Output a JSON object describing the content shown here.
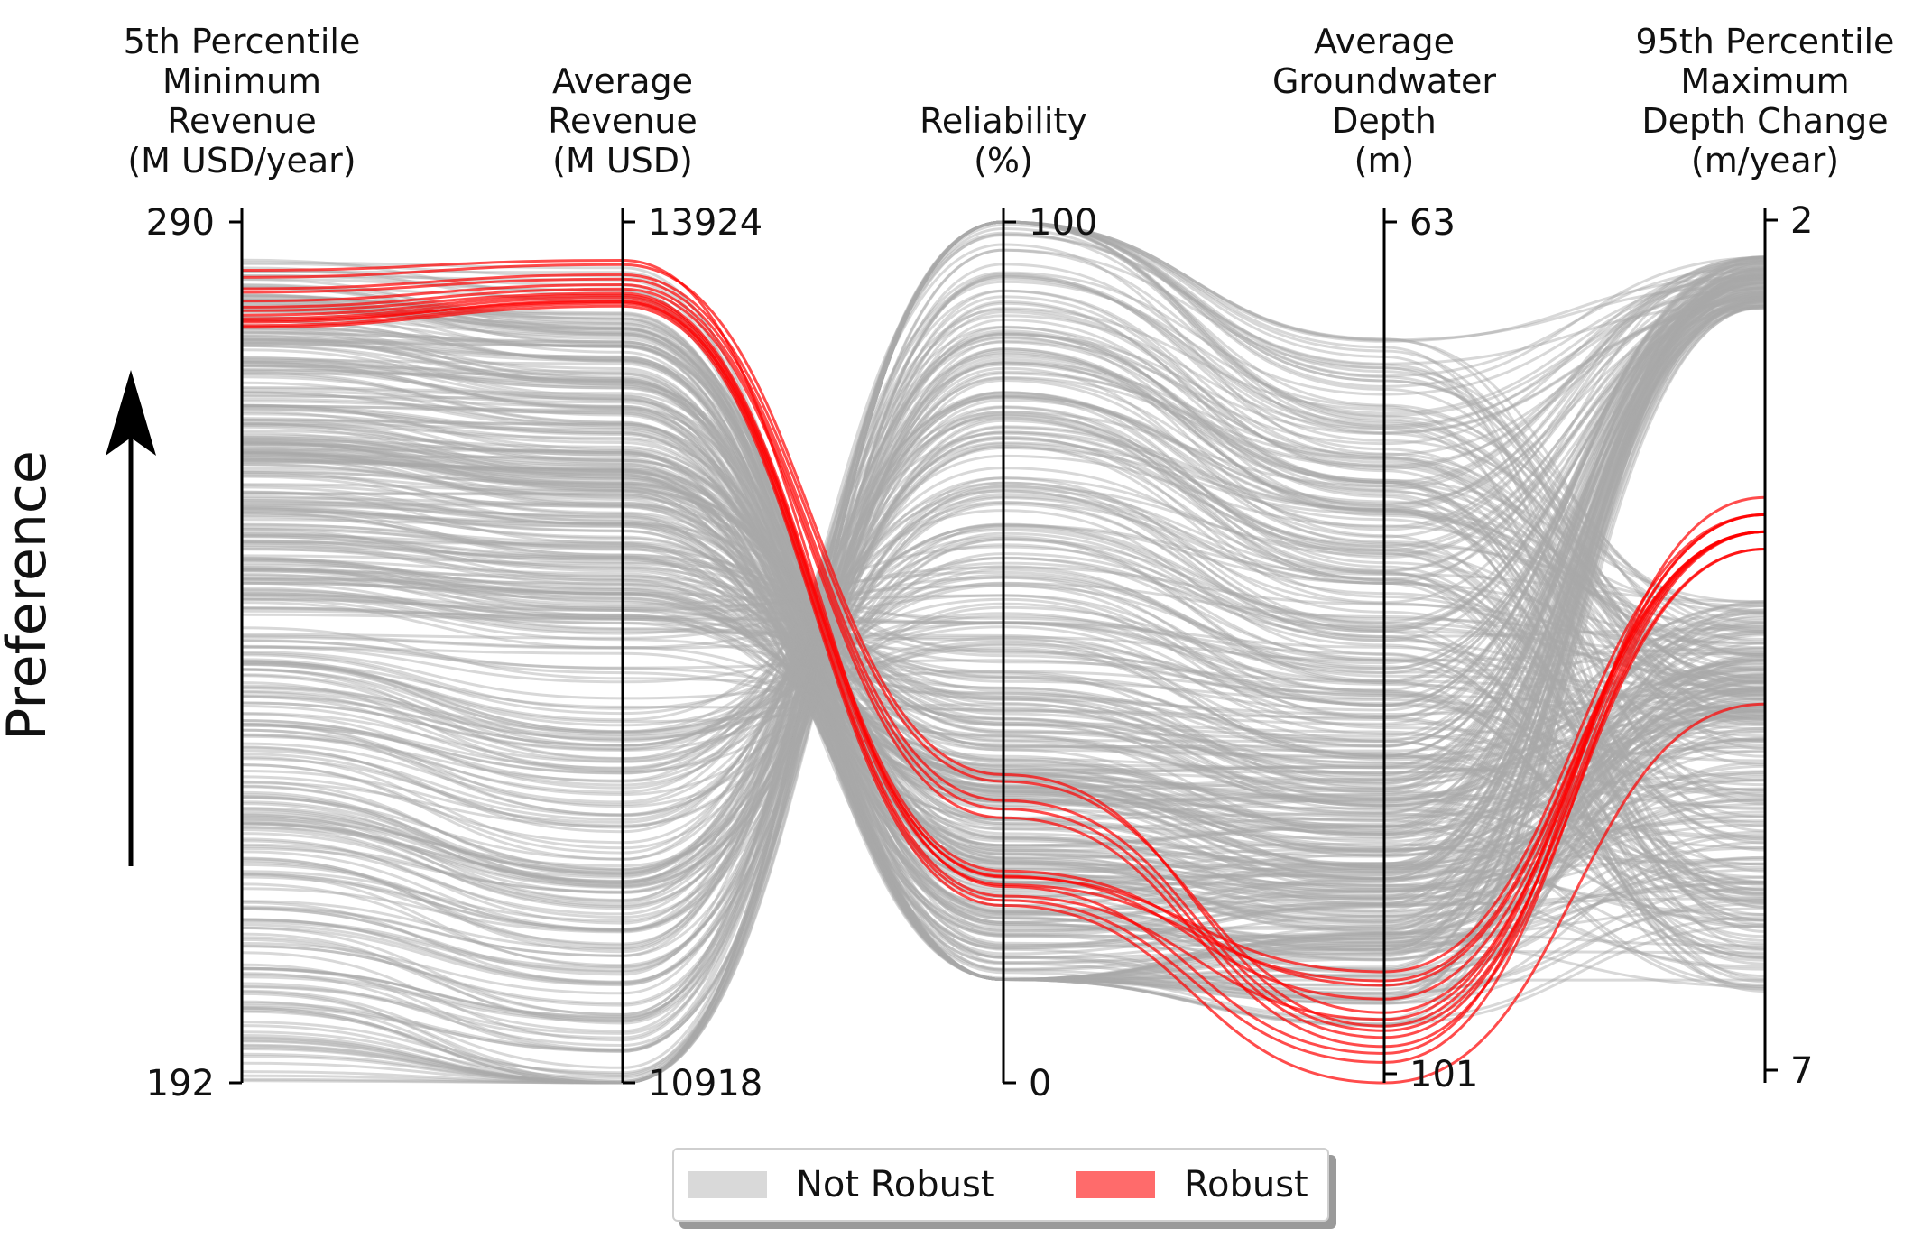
{
  "chart_data": {
    "type": "parallel-coordinates",
    "y_axis_label": "Preference",
    "axes": [
      {
        "title_lines": [
          "5th Percentile",
          "Minimum",
          "Revenue",
          "(M USD/year)"
        ],
        "top": "290",
        "bottom": "192",
        "top_value": 290,
        "bottom_value": 192
      },
      {
        "title_lines": [
          "Average",
          "Revenue",
          "(M USD)"
        ],
        "top": "13924",
        "bottom": "10918",
        "top_value": 13924,
        "bottom_value": 10918
      },
      {
        "title_lines": [
          "Reliability",
          "(%)"
        ],
        "top": "100",
        "bottom": "0",
        "top_value": 100,
        "bottom_value": 0
      },
      {
        "title_lines": [
          "Average",
          "Groundwater",
          "Depth",
          "(m)"
        ],
        "top": "63",
        "bottom": "101",
        "top_value": 63,
        "bottom_value": 101
      },
      {
        "title_lines": [
          "95th Percentile",
          "Maximum",
          "Depth Change",
          "(m/year)"
        ],
        "top": "2",
        "bottom": "7",
        "top_value": 2,
        "bottom_value": 7
      }
    ],
    "series": [
      {
        "name": "Not Robust",
        "color": "#b0b0b0"
      },
      {
        "name": "Robust",
        "color": "#ff0000"
      }
    ],
    "robust_lines": [
      [
        283.7,
        13775,
        35.8,
        98.5,
        3.7
      ],
      [
        282.4,
        13740,
        35.0,
        97.9,
        3.8
      ],
      [
        282.0,
        13725,
        32.8,
        98.7,
        3.9
      ],
      [
        281.0,
        13705,
        31.8,
        99.0,
        3.8
      ],
      [
        280.3,
        13690,
        30.8,
        99.4,
        3.9
      ],
      [
        279.9,
        13675,
        24.6,
        96.7,
        3.8
      ],
      [
        279.4,
        13668,
        23.9,
        96.1,
        3.7
      ],
      [
        279.0,
        13660,
        23.0,
        96.5,
        3.8
      ],
      [
        278.6,
        13650,
        21.7,
        98.2,
        3.7
      ],
      [
        278.2,
        13640,
        21.2,
        100.1,
        3.8
      ],
      [
        278.0,
        13630,
        20.6,
        101.0,
        4.8
      ],
      [
        284.5,
        13790,
        22.8,
        99.7,
        3.6
      ],
      [
        278.8,
        13645,
        24.0,
        97.3,
        3.8
      ]
    ],
    "legend": [
      {
        "label": "Not Robust",
        "color": "#d9d9d9"
      },
      {
        "label": "Robust",
        "color": "#ff6b6b"
      }
    ],
    "legend_position": "bottom-center"
  }
}
